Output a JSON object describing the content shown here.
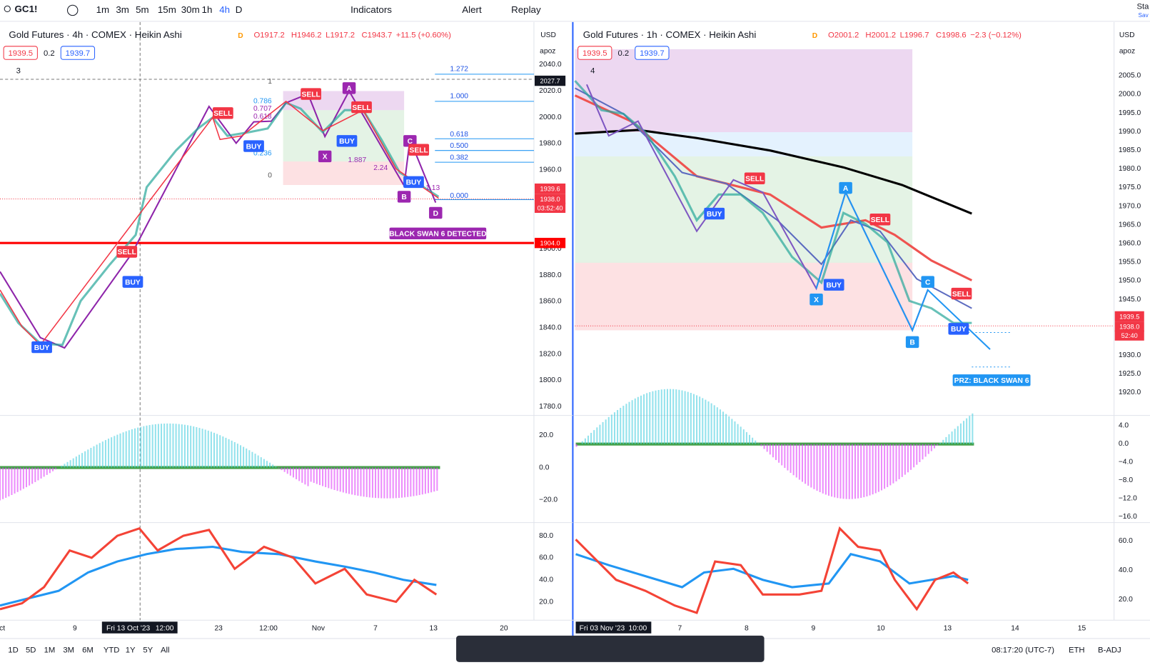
{
  "toolbar": {
    "symbol": "GC1!",
    "intervals": [
      "1m",
      "3m",
      "5m",
      "15m",
      "30m",
      "1h",
      "4h",
      "D"
    ],
    "indicators": "Indicators",
    "alert": "Alert",
    "replay": "Replay",
    "right": "Sta",
    "right_sub": "Sav"
  },
  "left_chart": {
    "title": "Gold Futures · 4h · COMEX · Heikin Ashi",
    "badge": "D",
    "open": "O1917.2",
    "high": "H1946.2",
    "low": "L1917.2",
    "close": "C1943.7",
    "change": "+11.5 (+0.60%)",
    "sell": "1939.5",
    "spread": "0.2",
    "buy": "1939.7",
    "currency": "USD",
    "scale": "apoz",
    "count": "3",
    "price_axis": [
      "2040.0",
      "2020.0",
      "2000.0",
      "1980.0",
      "1960.0",
      "1900.0",
      "1880.0",
      "1860.0",
      "1840.0",
      "1820.0",
      "1800.0",
      "1780.0"
    ],
    "price_tags": [
      "2027.7",
      "1939.6",
      "1938.0",
      "03:52:40",
      "1904.0"
    ],
    "osc1_axis": [
      "20.0",
      "0.0",
      "−20.0"
    ],
    "osc2_axis": [
      "80.0",
      "60.0",
      "40.0",
      "20.0"
    ],
    "x_labels": [
      "ct",
      "9",
      "23",
      "12:00",
      "Nov",
      "7",
      "13",
      "20"
    ],
    "crosshair_date": "Fri 13 Oct '23",
    "crosshair_time": "12:00",
    "fib_inner": [
      "1",
      "0.786",
      "0.707",
      "0.618",
      "0.236",
      "0"
    ],
    "fib_outer": [
      "1.272",
      "1.000",
      "0.618",
      "0.500",
      "0.382",
      "0.000"
    ],
    "ratios": [
      "1.887",
      "2.24",
      "1.13"
    ],
    "points": [
      "A",
      "X",
      "B",
      "C",
      "D"
    ],
    "signals": [
      "SELL",
      "SELL",
      "SELL",
      "SELL",
      "SELL",
      "BUY",
      "BUY",
      "BUY",
      "BUY",
      "BUY"
    ],
    "detected": "BLACK SWAN 6 DETECTED"
  },
  "right_chart": {
    "title": "Gold Futures · 1h · COMEX · Heikin Ashi",
    "badge": "D",
    "open": "O2001.2",
    "high": "H2001.2",
    "low": "L1996.7",
    "close": "C1998.6",
    "change": "−2.3 (−0.12%)",
    "sell": "1939.5",
    "spread": "0.2",
    "buy": "1939.7",
    "currency": "USD",
    "scale": "apoz",
    "count": "4",
    "price_axis": [
      "2005.0",
      "2000.0",
      "1995.0",
      "1990.0",
      "1985.0",
      "1980.0",
      "1975.0",
      "1970.0",
      "1965.0",
      "1960.0",
      "1955.0",
      "1950.0",
      "1945.0",
      "1930.0",
      "1925.0",
      "1920.0"
    ],
    "price_tags": [
      "1939.5",
      "1938.0",
      "52:40"
    ],
    "osc1_axis": [
      "4.0",
      "0.0",
      "−4.0",
      "−8.0",
      "−12.0",
      "−16.0"
    ],
    "osc2_axis": [
      "60.0",
      "40.0",
      "20.0"
    ],
    "x_labels": [
      "7",
      "8",
      "9",
      "10",
      "13",
      "14",
      "15"
    ],
    "crosshair_date": "Fri 03 Nov '23",
    "crosshair_time": "10:00",
    "points": [
      "A",
      "X",
      "B",
      "C"
    ],
    "signals": [
      "SELL",
      "SELL",
      "SELL",
      "BUY",
      "BUY",
      "BUY"
    ],
    "prz": "PRZ: BLACK SWAN 6"
  },
  "bottom_bar": {
    "ranges": [
      "1D",
      "5D",
      "1M",
      "3M",
      "6M",
      "YTD",
      "1Y",
      "5Y",
      "All"
    ],
    "clock": "08:17:20 (UTC-7)",
    "session": "ETH",
    "adjust": "B-ADJ"
  }
}
